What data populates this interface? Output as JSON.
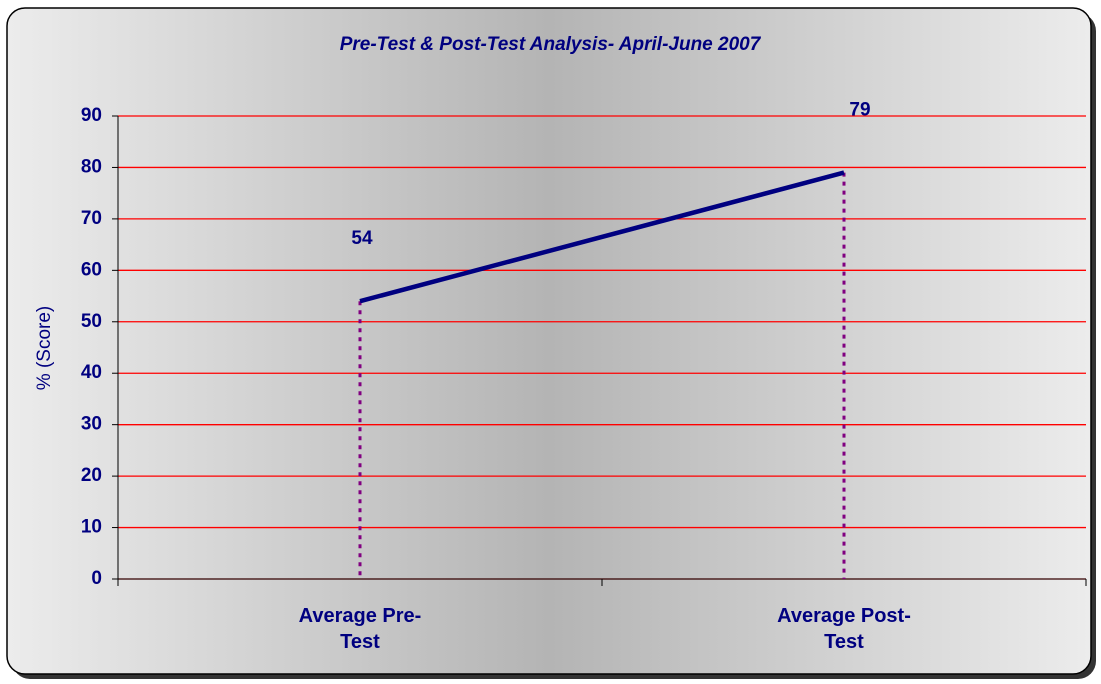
{
  "chart_data": {
    "type": "line",
    "title": "Pre-Test & Post-Test Analysis- April-June 2007",
    "y_label": "% (Score)",
    "categories": [
      "Average Pre-Test",
      "Average Post-Test"
    ],
    "values": [
      54,
      79
    ],
    "color": "#000080",
    "ylim": [
      0,
      90
    ],
    "yticks": [
      0,
      10,
      20,
      30,
      40,
      50,
      60,
      70,
      80,
      90
    ],
    "grid": true,
    "grid_color": "#ff0000",
    "drop_lines": true,
    "drop_line_color": "#800080"
  }
}
